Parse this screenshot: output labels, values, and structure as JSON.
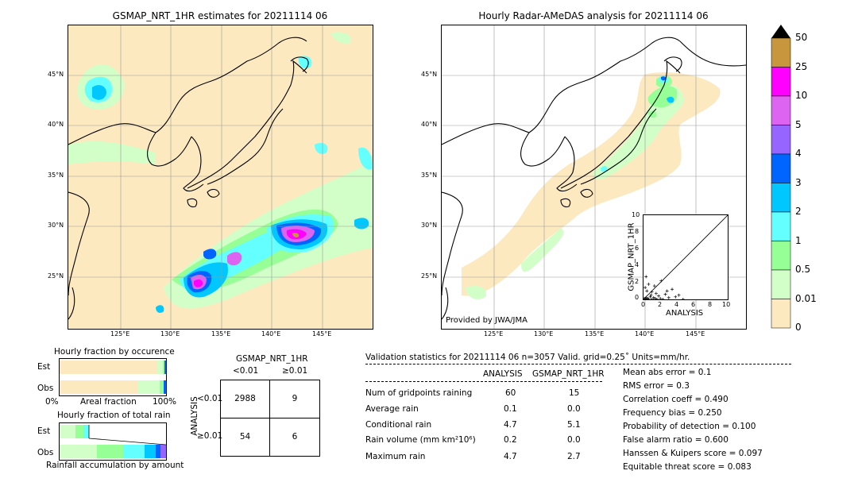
{
  "panels": {
    "left_title": "GSMAP_NRT_1HR estimates for 20211114 06",
    "right_title": "Hourly Radar-AMeDAS analysis for 20211114 06",
    "provided_by": "Provided by JWA/JMA",
    "lat_ticks": [
      "45°N",
      "40°N",
      "35°N",
      "30°N",
      "25°N"
    ],
    "lon_ticks": [
      "125°E",
      "130°E",
      "135°E",
      "140°E",
      "145°E"
    ]
  },
  "colorbar": {
    "labels": [
      "50",
      "25",
      "10",
      "5",
      "4",
      "3",
      "2",
      "1",
      "0.5",
      "0.01",
      "0"
    ],
    "colors": [
      "#c8963c",
      "#ff00ff",
      "#dc64f0",
      "#9664ff",
      "#0064ff",
      "#00c8ff",
      "#64ffff",
      "#96ff96",
      "#d2ffc8",
      "#fde9c0"
    ]
  },
  "scatter": {
    "ylabel": "GSMAP_NRT_1HR",
    "xlabel": "ANALYSIS",
    "ticks": [
      "0",
      "2",
      "4",
      "6",
      "8",
      "10"
    ]
  },
  "fraction_occurrence": {
    "title": "Hourly fraction by occurence",
    "rows": [
      "Est",
      "Obs"
    ],
    "axis_left": "0%",
    "axis_mid": "Areal fraction",
    "axis_right": "100%"
  },
  "fraction_total": {
    "title": "Hourly fraction of total rain",
    "rows": [
      "Est",
      "Obs"
    ],
    "axis_label": "Rainfall accumulation by amount"
  },
  "contingency": {
    "title": "GSMAP_NRT_1HR",
    "col_lt": "<0.01",
    "col_ge": "≥0.01",
    "row_axis": "ANALYSIS",
    "row_lt": "<0.01",
    "row_ge": "≥0.01",
    "a": "2988",
    "b": "9",
    "c": "54",
    "d": "6"
  },
  "validation": {
    "header": "Validation statistics for 20211114 06  n=3057 Valid. grid=0.25˚ Units=mm/hr.",
    "col_analysis": "ANALYSIS",
    "col_gsmap": "GSMAP_NRT_1HR",
    "rows": [
      {
        "label": "Num of gridpoints raining",
        "analysis": "60",
        "gsmap": "15"
      },
      {
        "label": "Average rain",
        "analysis": "0.1",
        "gsmap": "0.0"
      },
      {
        "label": "Conditional rain",
        "analysis": "4.7",
        "gsmap": "5.1"
      },
      {
        "label": "Rain volume (mm km²10⁶)",
        "analysis": "0.2",
        "gsmap": "0.0"
      },
      {
        "label": "Maximum rain",
        "analysis": "4.7",
        "gsmap": "2.7"
      }
    ],
    "scores": [
      "Mean abs error =    0.1",
      "RMS error =    0.3",
      "Correlation coeff =  0.490",
      "Frequency bias =  0.250",
      "Probability of detection =  0.100",
      "False alarm ratio =  0.600",
      "Hanssen & Kuipers score =  0.097",
      "Equitable threat score =  0.083"
    ]
  },
  "chart_data": [
    {
      "type": "scatter",
      "xlabel": "ANALYSIS",
      "ylabel": "GSMAP_NRT_1HR",
      "xlim": [
        0,
        10
      ],
      "ylim": [
        0,
        10
      ],
      "points": [
        [
          0.1,
          0.1
        ],
        [
          0.2,
          0.0
        ],
        [
          0.3,
          0.2
        ],
        [
          0.4,
          0.0
        ],
        [
          0.5,
          0.1
        ],
        [
          0.6,
          0.0
        ],
        [
          0.8,
          0.3
        ],
        [
          1.0,
          0.0
        ],
        [
          1.2,
          0.2
        ],
        [
          1.4,
          0.1
        ],
        [
          1.6,
          0.0
        ],
        [
          1.8,
          0.4
        ],
        [
          2.0,
          0.1
        ],
        [
          2.3,
          0.0
        ],
        [
          2.6,
          0.6
        ],
        [
          3.0,
          0.2
        ],
        [
          3.4,
          1.2
        ],
        [
          3.8,
          0.3
        ],
        [
          4.2,
          0.5
        ],
        [
          4.7,
          0.0
        ],
        [
          0.2,
          1.4
        ],
        [
          0.4,
          1.0
        ],
        [
          0.6,
          1.8
        ],
        [
          1.0,
          0.9
        ],
        [
          1.3,
          1.6
        ],
        [
          2.1,
          2.2
        ],
        [
          0.3,
          2.7
        ],
        [
          1.5,
          0.7
        ],
        [
          2.8,
          1.0
        ],
        [
          0.9,
          0.5
        ]
      ]
    },
    {
      "type": "table",
      "title": "GSMAP_NRT_1HR",
      "columns": [
        "<0.01",
        "≥0.01"
      ],
      "rows": [
        "<0.01",
        "≥0.01"
      ],
      "values": [
        [
          2988,
          9
        ],
        [
          54,
          6
        ]
      ]
    },
    {
      "type": "bar",
      "title": "Hourly fraction by occurence",
      "categories": [
        "Est",
        "Obs"
      ],
      "series": [
        {
          "values": [
            0.995,
            0.98
          ]
        }
      ]
    }
  ]
}
